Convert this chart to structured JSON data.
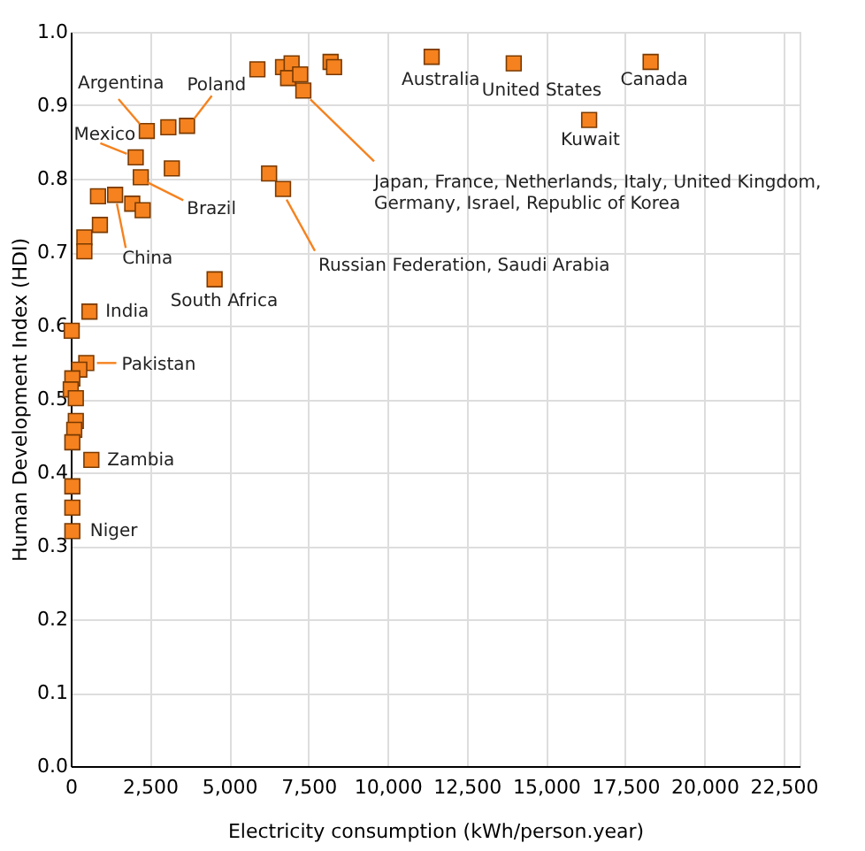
{
  "chart_data": {
    "type": "scatter",
    "xlabel": "Electricity consumption (kWh/person.year)",
    "ylabel": "Human Development Index (HDI)",
    "xlim": [
      0,
      23000
    ],
    "ylim": [
      0,
      1.0
    ],
    "xticks": [
      0,
      {
        "value": 2500,
        "label": "2,500"
      },
      {
        "value": 5000,
        "label": "5,000"
      },
      {
        "value": 7500,
        "label": "7,500"
      },
      {
        "value": 10000,
        "label": "10,000"
      },
      {
        "value": 12500,
        "label": "12,500"
      },
      {
        "value": 15000,
        "label": "15,000"
      },
      {
        "value": 17500,
        "label": "17,500"
      },
      {
        "value": 20000,
        "label": "20,000"
      },
      {
        "value": 22500,
        "label": "22,500"
      }
    ],
    "yticks": [
      {
        "value": 0,
        "label": "0.0"
      },
      0.1,
      0.2,
      0.3,
      0.4,
      0.5,
      0.6,
      0.7,
      0.8,
      0.9,
      {
        "value": 1,
        "label": "1.0"
      }
    ],
    "grid": true,
    "marker": "square",
    "series": [
      {
        "color": "#f5821f",
        "x": [
          2400,
          3080,
          3670,
          2050,
          3190,
          2210,
          860,
          1400,
          1940,
          2270,
          920,
          430,
          430,
          4540,
          590,
          30,
          5890,
          6700,
          6970,
          6860,
          7240,
          7340,
          8200,
          8310,
          6260,
          6700,
          11390,
          13980,
          18300,
          16360,
          490,
          270,
          50,
          0,
          160,
          160,
          110,
          50,
          650,
          50,
          50,
          50
        ],
        "values": [
          0.865,
          0.87,
          0.872,
          0.829,
          0.814,
          0.802,
          0.776,
          0.778,
          0.766,
          0.757,
          0.737,
          0.72,
          0.701,
          0.663,
          0.619,
          0.593,
          0.949,
          0.952,
          0.957,
          0.937,
          0.942,
          0.92,
          0.959,
          0.952,
          0.807,
          0.786,
          0.966,
          0.957,
          0.959,
          0.88,
          0.549,
          0.54,
          0.528,
          0.513,
          0.501,
          0.47,
          0.458,
          0.441,
          0.417,
          0.381,
          0.352,
          0.32
        ]
      }
    ],
    "annotations": [
      {
        "text": "Argentina",
        "x": 2400,
        "y": 0.865
      },
      {
        "text": "Poland",
        "x": 3670,
        "y": 0.872
      },
      {
        "text": "Mexico",
        "x": 2050,
        "y": 0.829
      },
      {
        "text": "Brazil",
        "x": 2210,
        "y": 0.802
      },
      {
        "text": "China",
        "x": 1400,
        "y": 0.778
      },
      {
        "text": "South Africa",
        "x": 4540,
        "y": 0.663
      },
      {
        "text": "India",
        "x": 590,
        "y": 0.619
      },
      {
        "text": "Australia",
        "x": 11390,
        "y": 0.966
      },
      {
        "text": "United States",
        "x": 13980,
        "y": 0.957
      },
      {
        "text": "Canada",
        "x": 18300,
        "y": 0.959
      },
      {
        "text": "Kuwait",
        "x": 16360,
        "y": 0.88
      },
      {
        "text": "Japan, France, Netherlands, Italy, United Kingdom,\nGermany, Israel, Republic of Korea",
        "x": 7340,
        "y": 0.92
      },
      {
        "text": "Russian Federation, Saudi Arabia",
        "x": 6700,
        "y": 0.786
      },
      {
        "text": "Pakistan",
        "x": 490,
        "y": 0.549
      },
      {
        "text": "Zambia",
        "x": 650,
        "y": 0.417
      },
      {
        "text": "Niger",
        "x": 50,
        "y": 0.32
      }
    ]
  }
}
